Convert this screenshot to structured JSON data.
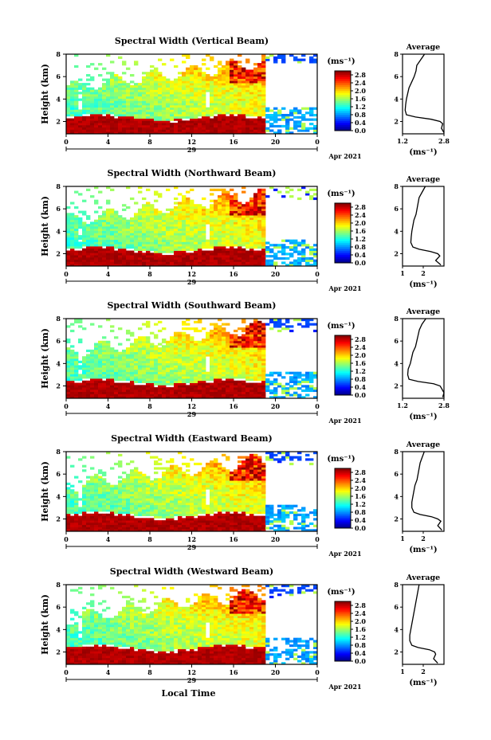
{
  "chart_data": [
    {
      "type": "heatmap",
      "title": "Spectral Width (Vertical Beam)",
      "ylabel": "Height (km)",
      "xticks": [
        "0",
        "4",
        "8",
        "12",
        "16",
        "20",
        "0"
      ],
      "day_label": "29",
      "date_label": "Apr 2021",
      "yticks": [
        "2",
        "4",
        "6",
        "8"
      ],
      "colorbar": {
        "unit": "(ms⁻¹)",
        "ticks": [
          "0.0",
          "0.4",
          "0.8",
          "1.2",
          "1.6",
          "2.0",
          "2.4",
          "2.8"
        ],
        "range": [
          0,
          3.0
        ]
      },
      "profile": {
        "title": "Average",
        "xticks": [
          "1.2",
          "2.8"
        ],
        "xlim": [
          1.2,
          2.8
        ],
        "xlabel": "(ms⁻¹)",
        "heights": [
          1.0,
          1.4,
          1.8,
          2.0,
          2.2,
          2.4,
          2.6,
          3.0,
          3.5,
          4.0,
          4.5,
          5.0,
          5.5,
          6.0,
          6.5,
          7.0,
          7.5,
          8.0
        ],
        "values": [
          2.8,
          2.7,
          2.75,
          2.65,
          2.3,
          1.7,
          1.35,
          1.3,
          1.32,
          1.35,
          1.4,
          1.45,
          1.55,
          1.65,
          1.72,
          1.75,
          1.9,
          2.05
        ]
      }
    },
    {
      "type": "heatmap",
      "title": "Spectral Width (Northward Beam)",
      "ylabel": "Height (km)",
      "xticks": [
        "0",
        "4",
        "8",
        "12",
        "16",
        "20",
        "0"
      ],
      "day_label": "29",
      "date_label": "Apr 2021",
      "yticks": [
        "2",
        "4",
        "6",
        "8"
      ],
      "colorbar": {
        "unit": "(ms⁻¹)",
        "ticks": [
          "0.0",
          "0.4",
          "0.8",
          "1.2",
          "1.6",
          "2.0",
          "2.4",
          "2.8"
        ],
        "range": [
          0,
          3.0
        ]
      },
      "profile": {
        "title": "Average",
        "xticks": [
          "1",
          "2"
        ],
        "xlim": [
          1.0,
          3.0
        ],
        "xlabel": "(ms⁻¹)",
        "heights": [
          1.0,
          1.4,
          1.8,
          2.0,
          2.2,
          2.4,
          2.6,
          3.0,
          3.5,
          4.0,
          4.5,
          5.0,
          5.5,
          6.0,
          6.5,
          7.0,
          7.5,
          8.0
        ],
        "values": [
          2.85,
          2.6,
          2.8,
          2.7,
          2.35,
          1.8,
          1.5,
          1.4,
          1.42,
          1.45,
          1.5,
          1.55,
          1.65,
          1.7,
          1.75,
          1.8,
          1.95,
          2.1
        ]
      }
    },
    {
      "type": "heatmap",
      "title": "Spectral Width (Southward Beam)",
      "ylabel": "Height (km)",
      "xticks": [
        "0",
        "4",
        "8",
        "12",
        "16",
        "20",
        "0"
      ],
      "day_label": "29",
      "date_label": "Apr 2021",
      "yticks": [
        "2",
        "4",
        "6",
        "8"
      ],
      "colorbar": {
        "unit": "(ms⁻¹)",
        "ticks": [
          "0.0",
          "0.4",
          "0.8",
          "1.2",
          "1.6",
          "2.0",
          "2.4",
          "2.8"
        ],
        "range": [
          0,
          3.0
        ]
      },
      "profile": {
        "title": "Average",
        "xticks": [
          "1.2",
          "2.8"
        ],
        "xlim": [
          1.2,
          2.8
        ],
        "xlabel": "(ms⁻¹)",
        "heights": [
          1.0,
          1.4,
          1.8,
          2.0,
          2.2,
          2.4,
          2.6,
          3.0,
          3.5,
          4.0,
          4.5,
          5.0,
          5.5,
          6.0,
          6.5,
          7.0,
          7.5,
          8.0
        ],
        "values": [
          2.75,
          2.8,
          2.7,
          2.65,
          2.4,
          1.8,
          1.45,
          1.4,
          1.42,
          1.5,
          1.55,
          1.6,
          1.7,
          1.75,
          1.8,
          1.85,
          1.95,
          2.1
        ]
      }
    },
    {
      "type": "heatmap",
      "title": "Spectral Width (Eastward Beam)",
      "ylabel": "Height (km)",
      "xticks": [
        "0",
        "4",
        "8",
        "12",
        "16",
        "20",
        "0"
      ],
      "day_label": "29",
      "date_label": "Apr 2021",
      "yticks": [
        "2",
        "4",
        "6",
        "8"
      ],
      "colorbar": {
        "unit": "(ms⁻¹)",
        "ticks": [
          "0.0",
          "0.4",
          "0.8",
          "1.2",
          "1.6",
          "2.0",
          "2.4",
          "2.8"
        ],
        "range": [
          0,
          3.0
        ]
      },
      "profile": {
        "title": "Average",
        "xticks": [
          "1",
          "2"
        ],
        "xlim": [
          1.0,
          3.0
        ],
        "xlabel": "(ms⁻¹)",
        "heights": [
          1.0,
          1.4,
          1.8,
          2.0,
          2.2,
          2.4,
          2.6,
          3.0,
          3.5,
          4.0,
          4.5,
          5.0,
          5.5,
          6.0,
          6.5,
          7.0,
          7.5,
          8.0
        ],
        "values": [
          2.9,
          2.7,
          2.85,
          2.7,
          2.4,
          1.85,
          1.55,
          1.45,
          1.45,
          1.5,
          1.55,
          1.6,
          1.7,
          1.75,
          1.8,
          1.85,
          1.95,
          2.05
        ]
      }
    },
    {
      "type": "heatmap",
      "title": "Spectral Width (Westward Beam)",
      "ylabel": "Height (km)",
      "xlabel": "Local Time",
      "xticks": [
        "0",
        "4",
        "8",
        "12",
        "16",
        "20",
        "0"
      ],
      "day_label": "29",
      "date_label": "Apr 2021",
      "yticks": [
        "2",
        "4",
        "6",
        "8"
      ],
      "colorbar": {
        "unit": "(ms⁻¹)",
        "ticks": [
          "0.0",
          "0.4",
          "0.8",
          "1.2",
          "1.6",
          "2.0",
          "2.4",
          "2.8"
        ],
        "range": [
          0,
          3.0
        ]
      },
      "profile": {
        "title": "Average",
        "xticks": [
          "1",
          "2"
        ],
        "xlim": [
          1.0,
          3.0
        ],
        "xlabel": "(ms⁻¹)",
        "heights": [
          1.0,
          1.4,
          1.8,
          2.0,
          2.2,
          2.4,
          2.6,
          3.0,
          3.5,
          4.0,
          4.5,
          5.0,
          5.5,
          6.0,
          6.5,
          7.0,
          7.5,
          8.0
        ],
        "values": [
          2.7,
          2.5,
          2.6,
          2.55,
          2.3,
          1.75,
          1.45,
          1.35,
          1.35,
          1.4,
          1.45,
          1.5,
          1.55,
          1.6,
          1.65,
          1.7,
          1.75,
          1.8
        ]
      }
    }
  ]
}
